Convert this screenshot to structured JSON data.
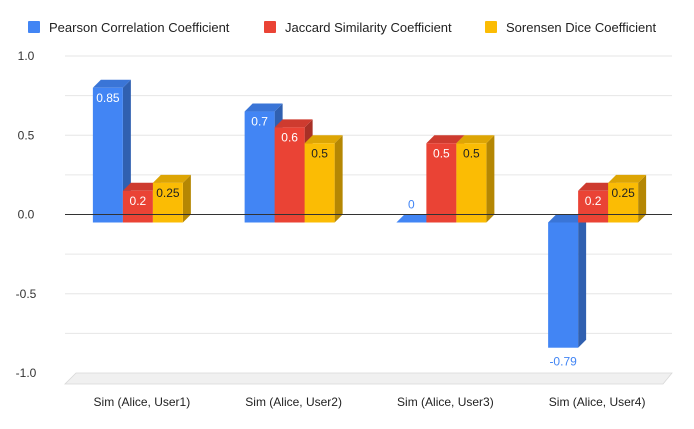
{
  "chart_data": {
    "type": "bar",
    "style": "3d",
    "title": "",
    "xlabel": "",
    "ylabel": "",
    "ylim": [
      -1.0,
      1.0
    ],
    "yticks": [
      "1.0",
      "0.5",
      "0.0",
      "-0.5",
      "-1.0"
    ],
    "ytick_values": [
      1.0,
      0.5,
      0.0,
      -0.5,
      -1.0
    ],
    "legend_position": "top",
    "categories": [
      "Sim (Alice, User1)",
      "Sim (Alice, User2)",
      "Sim (Alice, User3)",
      "Sim (Alice, User4)"
    ],
    "series": [
      {
        "name": "Pearson Correlation Coefficient",
        "color": "#4285F4",
        "values": [
          0.85,
          0.7,
          0,
          -0.79
        ],
        "labels": [
          "0.85",
          "0.7",
          "0",
          "-0.79"
        ]
      },
      {
        "name": "Jaccard Similarity Coefficient",
        "color": "#EA4335",
        "values": [
          0.2,
          0.6,
          0.5,
          0.2
        ],
        "labels": [
          "0.2",
          "0.6",
          "0.5",
          "0.2"
        ]
      },
      {
        "name": "Sorensen Dice Coefficient",
        "color": "#FBBC04",
        "values": [
          0.25,
          0.5,
          0.5,
          0.25
        ],
        "labels": [
          "0.25",
          "0.5",
          "0.5",
          "0.25"
        ]
      }
    ]
  }
}
